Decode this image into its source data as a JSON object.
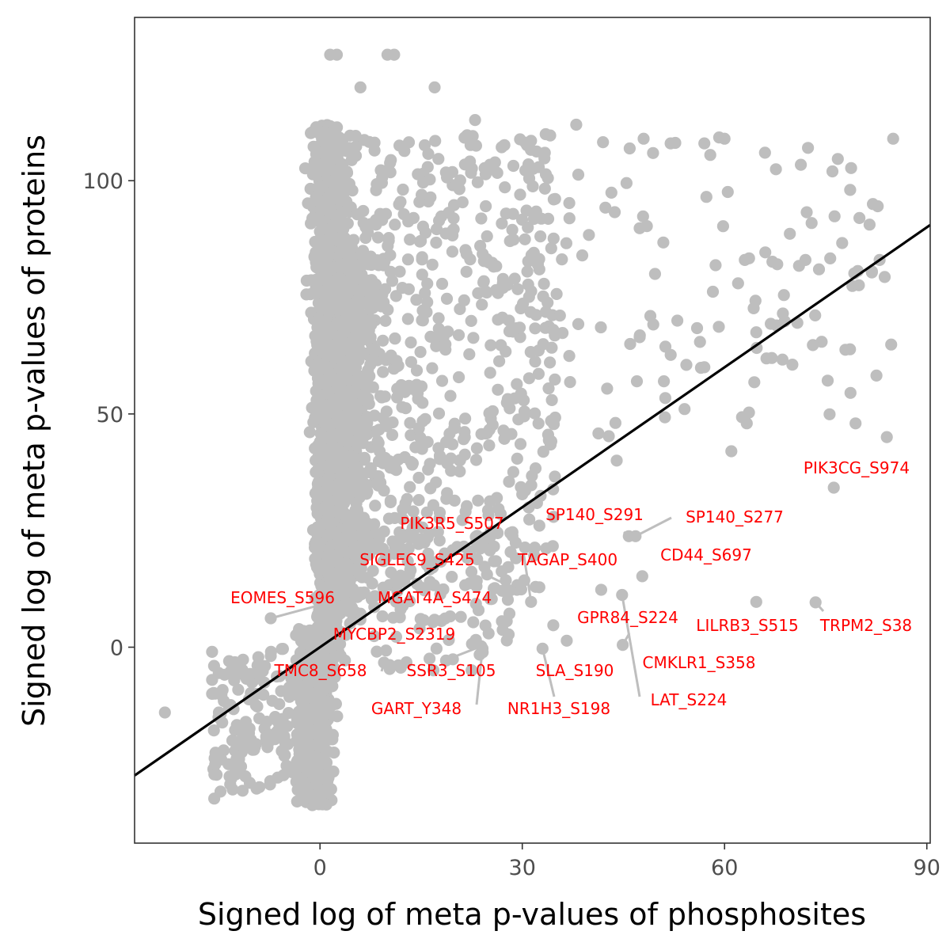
{
  "chart_data": {
    "type": "scatter",
    "xlabel": "Signed log of meta p-values of phosphosites",
    "ylabel": "Signed log of meta p-values of proteins",
    "xlim": [
      -27.5,
      90.5
    ],
    "ylim": [
      -42,
      135
    ],
    "x_ticks": [
      0,
      30,
      60,
      90
    ],
    "y_ticks": [
      0,
      50,
      100
    ],
    "grid": false,
    "point_color": "#bebebe",
    "line_color": "#000000",
    "label_color": "#ff0000",
    "fit_line": {
      "x": [
        -27.5,
        90.5
      ],
      "y": [
        -27.5,
        90.5
      ]
    },
    "labeled_points": [
      {
        "name": "PIK3CG_S974",
        "x": 76.2,
        "y": 34.2
      },
      {
        "name": "SP140_S291",
        "x": 45.8,
        "y": 23.8
      },
      {
        "name": "SP140_S277",
        "x": 46.8,
        "y": 23.8
      },
      {
        "name": "PIK3R5_S507",
        "x": 31.3,
        "y": 9.7
      },
      {
        "name": "CD44_S697",
        "x": 47.8,
        "y": 15.2
      },
      {
        "name": "SIGLEC9_S425",
        "x": 29.2,
        "y": 12.3
      },
      {
        "name": "TAGAP_S400",
        "x": 41.7,
        "y": 12.3
      },
      {
        "name": "EOMES_S596",
        "x": -7.3,
        "y": 6.2
      },
      {
        "name": "MGAT4A_S474",
        "x": 28.1,
        "y": 7.2
      },
      {
        "name": "GPR84_S224",
        "x": 34.6,
        "y": 4.7
      },
      {
        "name": "LILRB3_S515",
        "x": 64.7,
        "y": 9.7
      },
      {
        "name": "TRPM2_S38",
        "x": 73.5,
        "y": 9.6
      },
      {
        "name": "MYCBP2_S2319",
        "x": 27.1,
        "y": 3.7
      },
      {
        "name": "TMC8_S658",
        "x": 9.5,
        "y": -3.3
      },
      {
        "name": "SSR3_S105",
        "x": 23.9,
        "y": 0.2
      },
      {
        "name": "SLA_S190",
        "x": 36.6,
        "y": 1.4
      },
      {
        "name": "CMKLR1_S358",
        "x": 44.9,
        "y": 0.5
      },
      {
        "name": "GART_Y348",
        "x": 24.1,
        "y": -0.3
      },
      {
        "name": "NR1H3_S198",
        "x": 33.0,
        "y": -0.3
      },
      {
        "name": "LAT_S224",
        "x": 44.8,
        "y": 11.2
      }
    ]
  }
}
